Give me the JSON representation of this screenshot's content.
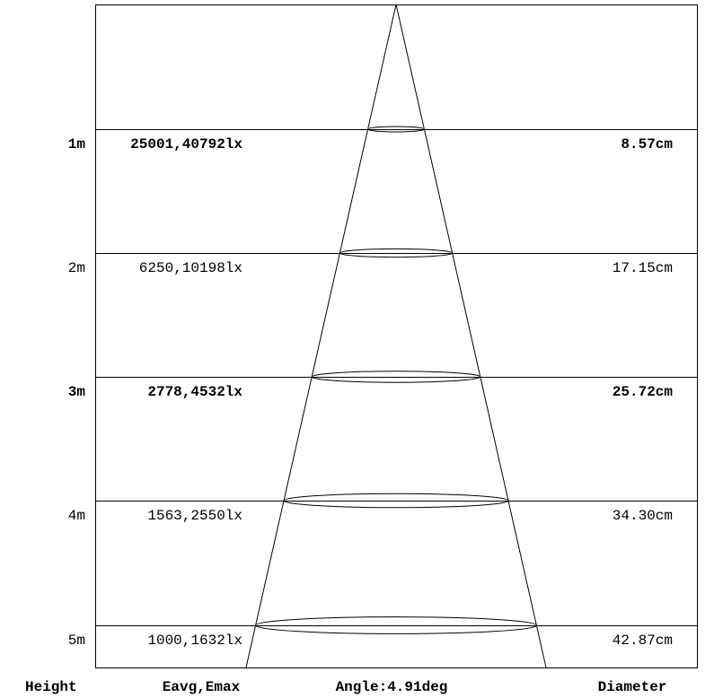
{
  "rows": [
    {
      "height": "1m",
      "illuminance": "25001,40792lx",
      "diameter": "8.57cm",
      "bold": true
    },
    {
      "height": "2m",
      "illuminance": "6250,10198lx",
      "diameter": "17.15cm",
      "bold": false
    },
    {
      "height": "3m",
      "illuminance": "2778,4532lx",
      "diameter": "25.72cm",
      "bold": true
    },
    {
      "height": "4m",
      "illuminance": "1563,2550lx",
      "diameter": "34.30cm",
      "bold": false
    },
    {
      "height": "5m",
      "illuminance": "1000,1632lx",
      "diameter": "42.87cm",
      "bold": false
    }
  ],
  "footer": {
    "height_label": "Height",
    "illuminance_label": "Eavg,Emax",
    "angle_label": "Angle:4.91deg",
    "diameter_label": "Diameter"
  },
  "colors": {
    "line": "#000000",
    "background": "#ffffff"
  }
}
